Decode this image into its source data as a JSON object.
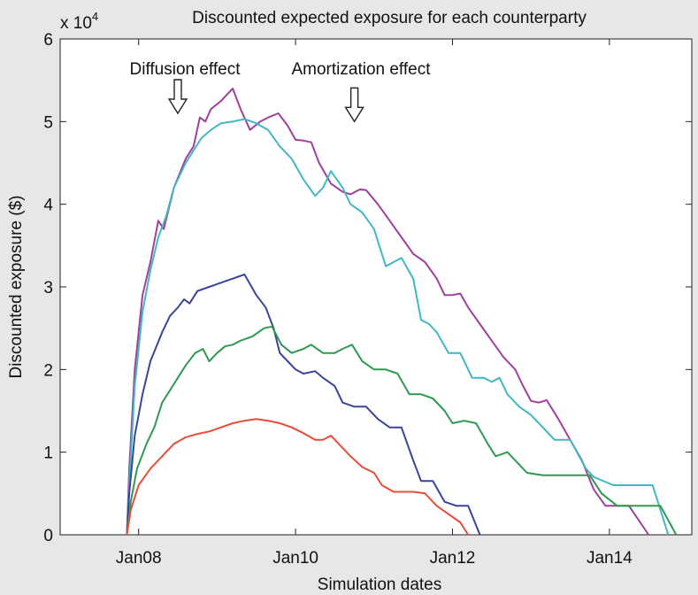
{
  "chart_data": {
    "type": "line",
    "title": "Discounted expected exposure for each counterparty",
    "xlabel": "Simulation dates",
    "ylabel": "Discounted exposure ($)",
    "y_scale_label": "x 10",
    "y_scale_exponent": "4",
    "xlim": [
      2007.0,
      2015.05
    ],
    "ylim": [
      0,
      60000
    ],
    "x_ticks": [
      {
        "value": 2008,
        "label": "Jan08"
      },
      {
        "value": 2010,
        "label": "Jan10"
      },
      {
        "value": 2012,
        "label": "Jan12"
      },
      {
        "value": 2014,
        "label": "Jan14"
      }
    ],
    "y_ticks": [
      {
        "value": 0,
        "label": "0"
      },
      {
        "value": 10000,
        "label": "1"
      },
      {
        "value": 20000,
        "label": "2"
      },
      {
        "value": 30000,
        "label": "3"
      },
      {
        "value": 40000,
        "label": "4"
      },
      {
        "value": 50000,
        "label": "5"
      },
      {
        "value": 60000,
        "label": "6"
      }
    ],
    "grid": false,
    "legend": "none",
    "annotations": [
      {
        "text": "Diffusion effect",
        "arrow_x": 2008.5,
        "arrow_y": 51000
      },
      {
        "text": "Amortization effect",
        "arrow_x": 2010.75,
        "arrow_y": 50000
      }
    ],
    "series": [
      {
        "color": "#a0409c",
        "points": [
          [
            2007.85,
            0
          ],
          [
            2007.88,
            8000
          ],
          [
            2007.95,
            20000
          ],
          [
            2008.05,
            29000
          ],
          [
            2008.15,
            33000
          ],
          [
            2008.25,
            38000
          ],
          [
            2008.32,
            37000
          ],
          [
            2008.45,
            42000
          ],
          [
            2008.6,
            45500
          ],
          [
            2008.7,
            47000
          ],
          [
            2008.78,
            50500
          ],
          [
            2008.85,
            50000
          ],
          [
            2008.92,
            51500
          ],
          [
            2009.05,
            52500
          ],
          [
            2009.2,
            54000
          ],
          [
            2009.3,
            51500
          ],
          [
            2009.42,
            49000
          ],
          [
            2009.55,
            50000
          ],
          [
            2009.65,
            50500
          ],
          [
            2009.78,
            51000
          ],
          [
            2009.9,
            49500
          ],
          [
            2010.0,
            47800
          ],
          [
            2010.1,
            47700
          ],
          [
            2010.2,
            47500
          ],
          [
            2010.3,
            45000
          ],
          [
            2010.45,
            42500
          ],
          [
            2010.6,
            41500
          ],
          [
            2010.7,
            41200
          ],
          [
            2010.82,
            41800
          ],
          [
            2010.9,
            41700
          ],
          [
            2011.05,
            40000
          ],
          [
            2011.2,
            38000
          ],
          [
            2011.35,
            36000
          ],
          [
            2011.5,
            34000
          ],
          [
            2011.65,
            33000
          ],
          [
            2011.8,
            31000
          ],
          [
            2011.9,
            29000
          ],
          [
            2012.0,
            29000
          ],
          [
            2012.1,
            29200
          ],
          [
            2012.2,
            27500
          ],
          [
            2012.35,
            25500
          ],
          [
            2012.5,
            23500
          ],
          [
            2012.65,
            21500
          ],
          [
            2012.8,
            20000
          ],
          [
            2012.9,
            18000
          ],
          [
            2013.0,
            16200
          ],
          [
            2013.1,
            16000
          ],
          [
            2013.2,
            16300
          ],
          [
            2013.35,
            14000
          ],
          [
            2013.5,
            11500
          ],
          [
            2013.65,
            9000
          ],
          [
            2013.8,
            5500
          ],
          [
            2013.95,
            3500
          ],
          [
            2014.15,
            3500
          ],
          [
            2014.25,
            3500
          ],
          [
            2014.5,
            0
          ]
        ]
      },
      {
        "color": "#40b8c4",
        "points": [
          [
            2007.85,
            0
          ],
          [
            2007.88,
            6000
          ],
          [
            2007.95,
            18000
          ],
          [
            2008.05,
            27000
          ],
          [
            2008.15,
            32000
          ],
          [
            2008.25,
            36000
          ],
          [
            2008.35,
            38500
          ],
          [
            2008.45,
            42000
          ],
          [
            2008.6,
            45000
          ],
          [
            2008.7,
            46500
          ],
          [
            2008.8,
            48000
          ],
          [
            2008.92,
            49000
          ],
          [
            2009.05,
            49800
          ],
          [
            2009.2,
            50000
          ],
          [
            2009.35,
            50300
          ],
          [
            2009.5,
            49800
          ],
          [
            2009.65,
            49000
          ],
          [
            2009.8,
            47000
          ],
          [
            2009.95,
            45500
          ],
          [
            2010.1,
            43000
          ],
          [
            2010.25,
            41000
          ],
          [
            2010.35,
            42000
          ],
          [
            2010.45,
            44000
          ],
          [
            2010.6,
            42000
          ],
          [
            2010.7,
            40000
          ],
          [
            2010.85,
            39000
          ],
          [
            2011.0,
            37000
          ],
          [
            2011.15,
            32500
          ],
          [
            2011.35,
            33500
          ],
          [
            2011.5,
            31000
          ],
          [
            2011.6,
            26000
          ],
          [
            2011.7,
            25500
          ],
          [
            2011.8,
            24500
          ],
          [
            2011.95,
            22000
          ],
          [
            2012.1,
            22000
          ],
          [
            2012.25,
            19000
          ],
          [
            2012.4,
            19000
          ],
          [
            2012.5,
            18500
          ],
          [
            2012.6,
            19000
          ],
          [
            2012.7,
            17000
          ],
          [
            2012.85,
            15500
          ],
          [
            2013.0,
            14500
          ],
          [
            2013.15,
            13000
          ],
          [
            2013.3,
            11500
          ],
          [
            2013.5,
            11500
          ],
          [
            2013.7,
            8000
          ],
          [
            2013.8,
            7000
          ],
          [
            2014.05,
            6000
          ],
          [
            2014.55,
            6000
          ],
          [
            2014.75,
            0
          ]
        ]
      },
      {
        "color": "#3b449a",
        "points": [
          [
            2007.85,
            0
          ],
          [
            2007.88,
            5000
          ],
          [
            2007.95,
            12000
          ],
          [
            2008.05,
            17000
          ],
          [
            2008.15,
            21000
          ],
          [
            2008.3,
            24500
          ],
          [
            2008.4,
            26500
          ],
          [
            2008.5,
            27500
          ],
          [
            2008.58,
            28500
          ],
          [
            2008.65,
            28000
          ],
          [
            2008.75,
            29500
          ],
          [
            2008.9,
            30000
          ],
          [
            2009.05,
            30500
          ],
          [
            2009.2,
            31000
          ],
          [
            2009.35,
            31500
          ],
          [
            2009.5,
            29000
          ],
          [
            2009.62,
            27500
          ],
          [
            2009.72,
            25000
          ],
          [
            2009.8,
            22000
          ],
          [
            2009.9,
            21000
          ],
          [
            2010.0,
            20000
          ],
          [
            2010.1,
            19500
          ],
          [
            2010.25,
            19800
          ],
          [
            2010.35,
            19000
          ],
          [
            2010.5,
            18000
          ],
          [
            2010.6,
            16000
          ],
          [
            2010.75,
            15500
          ],
          [
            2010.9,
            15500
          ],
          [
            2011.05,
            14000
          ],
          [
            2011.2,
            13000
          ],
          [
            2011.35,
            13000
          ],
          [
            2011.5,
            9000
          ],
          [
            2011.6,
            6500
          ],
          [
            2011.75,
            6500
          ],
          [
            2011.9,
            4000
          ],
          [
            2012.05,
            3500
          ],
          [
            2012.2,
            3500
          ],
          [
            2012.35,
            0
          ]
        ]
      },
      {
        "color": "#2e9a50",
        "points": [
          [
            2007.85,
            0
          ],
          [
            2007.9,
            4000
          ],
          [
            2007.98,
            8000
          ],
          [
            2008.1,
            11000
          ],
          [
            2008.2,
            13000
          ],
          [
            2008.3,
            16000
          ],
          [
            2008.4,
            17500
          ],
          [
            2008.5,
            19000
          ],
          [
            2008.6,
            20500
          ],
          [
            2008.72,
            22000
          ],
          [
            2008.82,
            22500
          ],
          [
            2008.9,
            21000
          ],
          [
            2009.0,
            22000
          ],
          [
            2009.1,
            22800
          ],
          [
            2009.2,
            23000
          ],
          [
            2009.3,
            23500
          ],
          [
            2009.45,
            24000
          ],
          [
            2009.6,
            25000
          ],
          [
            2009.7,
            25200
          ],
          [
            2009.82,
            23000
          ],
          [
            2009.95,
            22000
          ],
          [
            2010.1,
            22500
          ],
          [
            2010.2,
            23000
          ],
          [
            2010.35,
            22000
          ],
          [
            2010.5,
            22000
          ],
          [
            2010.6,
            22500
          ],
          [
            2010.72,
            23000
          ],
          [
            2010.85,
            21000
          ],
          [
            2011.0,
            20000
          ],
          [
            2011.15,
            20000
          ],
          [
            2011.3,
            19500
          ],
          [
            2011.45,
            17000
          ],
          [
            2011.6,
            17000
          ],
          [
            2011.75,
            16500
          ],
          [
            2011.9,
            15000
          ],
          [
            2012.0,
            13500
          ],
          [
            2012.15,
            13800
          ],
          [
            2012.3,
            13500
          ],
          [
            2012.45,
            11000
          ],
          [
            2012.55,
            9500
          ],
          [
            2012.7,
            10000
          ],
          [
            2012.85,
            8500
          ],
          [
            2012.95,
            7500
          ],
          [
            2013.15,
            7200
          ],
          [
            2013.5,
            7200
          ],
          [
            2013.75,
            7200
          ],
          [
            2013.9,
            5000
          ],
          [
            2014.1,
            3500
          ],
          [
            2014.5,
            3500
          ],
          [
            2014.65,
            3500
          ],
          [
            2014.85,
            0
          ]
        ]
      },
      {
        "color": "#e84c3a",
        "points": [
          [
            2007.85,
            0
          ],
          [
            2007.9,
            3000
          ],
          [
            2008.0,
            6000
          ],
          [
            2008.15,
            8000
          ],
          [
            2008.3,
            9500
          ],
          [
            2008.45,
            11000
          ],
          [
            2008.6,
            11800
          ],
          [
            2008.75,
            12200
          ],
          [
            2008.9,
            12500
          ],
          [
            2009.05,
            13000
          ],
          [
            2009.2,
            13500
          ],
          [
            2009.35,
            13800
          ],
          [
            2009.5,
            14000
          ],
          [
            2009.65,
            13800
          ],
          [
            2009.8,
            13500
          ],
          [
            2009.95,
            13000
          ],
          [
            2010.1,
            12300
          ],
          [
            2010.25,
            11500
          ],
          [
            2010.35,
            11500
          ],
          [
            2010.45,
            12000
          ],
          [
            2010.55,
            11000
          ],
          [
            2010.7,
            9500
          ],
          [
            2010.85,
            8200
          ],
          [
            2011.0,
            7500
          ],
          [
            2011.1,
            6000
          ],
          [
            2011.25,
            5200
          ],
          [
            2011.5,
            5200
          ],
          [
            2011.65,
            5000
          ],
          [
            2011.8,
            3500
          ],
          [
            2011.95,
            2500
          ],
          [
            2012.1,
            1500
          ],
          [
            2012.2,
            0
          ]
        ]
      }
    ]
  }
}
